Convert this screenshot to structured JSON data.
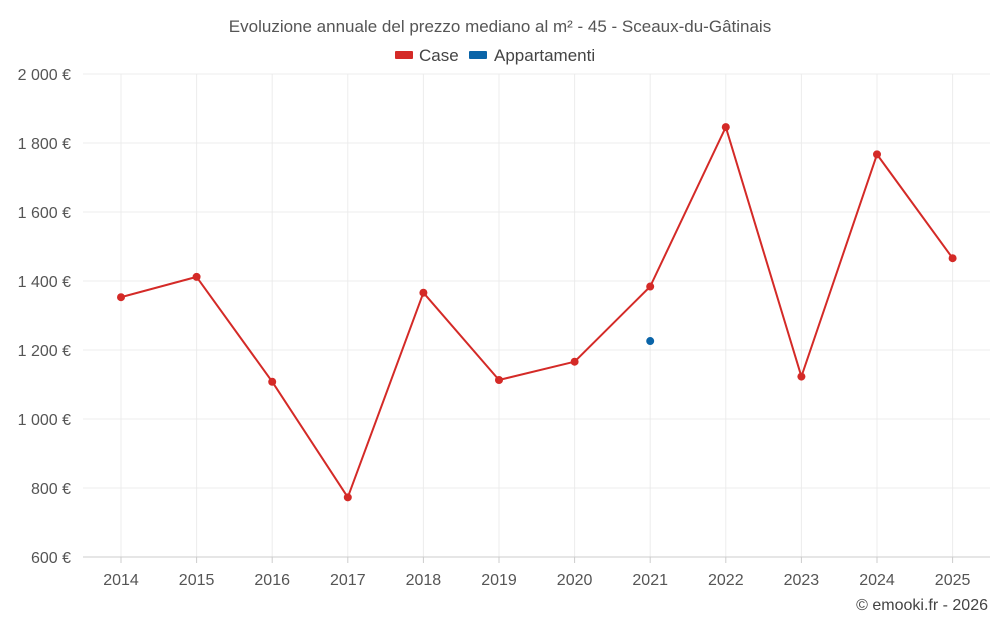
{
  "chart_data": {
    "type": "line",
    "title": "Evoluzione annuale del prezzo mediano al m² - 45 - Sceaux-du-Gâtinais",
    "categories": [
      "2014",
      "2015",
      "2016",
      "2017",
      "2018",
      "2019",
      "2020",
      "2021",
      "2022",
      "2023",
      "2024",
      "2025"
    ],
    "ylim": [
      600,
      2000
    ],
    "y_ticks": [
      600,
      800,
      1000,
      1200,
      1400,
      1600,
      1800,
      2000
    ],
    "y_tick_labels": [
      "600 €",
      "800 €",
      "1 000 €",
      "1 200 €",
      "1 400 €",
      "1 600 €",
      "1 800 €",
      "2 000 €"
    ],
    "series": [
      {
        "name": "Case",
        "color": "#d42a27",
        "values": [
          1353,
          1412,
          1108,
          773,
          1366,
          1113,
          1166,
          1384,
          1846,
          1123,
          1767,
          1466
        ]
      },
      {
        "name": "Appartamenti",
        "color": "#0a64a8",
        "values": [
          null,
          null,
          null,
          null,
          null,
          null,
          null,
          1226,
          null,
          null,
          null,
          null
        ]
      }
    ],
    "grid": true,
    "legend": "top-center",
    "credit": "© emooki.fr - 2026"
  }
}
